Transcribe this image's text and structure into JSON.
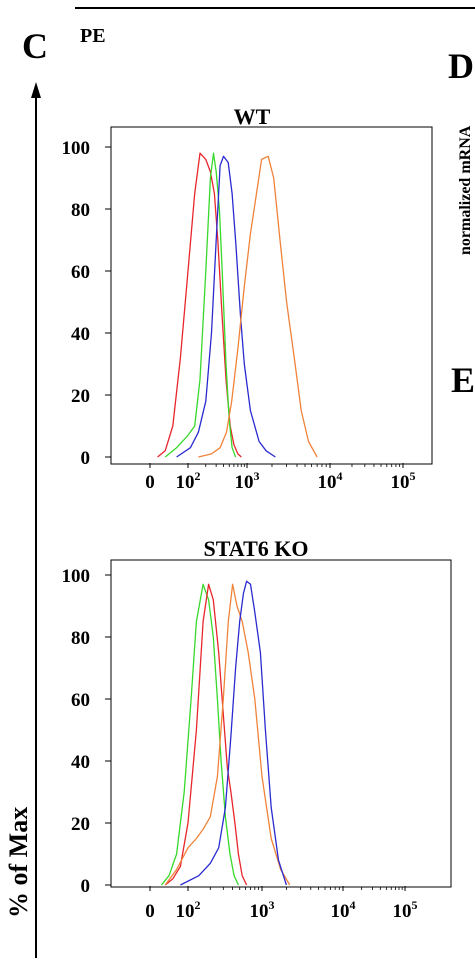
{
  "figure": {
    "panel_c_label": "C",
    "panel_d_label": "D",
    "panel_e_label": "E",
    "pe_label": "PE",
    "d_ylabel_fragment": "normalized mRNA",
    "y_axis_label": "% of Max"
  },
  "colors": {
    "red": "#e8262b",
    "green": "#37d92b",
    "blue": "#2a2ad0",
    "orange": "#f0833a"
  },
  "chart_data": [
    {
      "type": "line",
      "title": "WT",
      "ylabel": "% of Max",
      "xscale": "biexponential (log-like, flow cytometry)",
      "ylim": [
        0,
        100
      ],
      "y_ticks": [
        "0",
        "20",
        "40",
        "60",
        "80",
        "100"
      ],
      "x_ticks": [
        {
          "base": "0",
          "exp": ""
        },
        {
          "base": "10",
          "exp": "2"
        },
        {
          "base": "10",
          "exp": "3"
        },
        {
          "base": "10",
          "exp": "4"
        },
        {
          "base": "10",
          "exp": "5"
        }
      ],
      "series": [
        {
          "color": "red",
          "x": [
            20,
            40,
            60,
            80,
            100,
            130,
            160,
            200,
            240,
            280,
            320,
            380,
            440,
            520,
            600,
            700,
            800
          ],
          "y": [
            0,
            2,
            10,
            32,
            60,
            85,
            98,
            96,
            92,
            85,
            70,
            45,
            25,
            10,
            4,
            1,
            0
          ]
        },
        {
          "color": "green",
          "x": [
            40,
            70,
            100,
            130,
            160,
            200,
            240,
            270,
            300,
            340,
            380,
            440,
            500,
            560,
            640
          ],
          "y": [
            0,
            3,
            7,
            10,
            25,
            60,
            90,
            98,
            92,
            80,
            60,
            30,
            12,
            3,
            0
          ]
        },
        {
          "color": "blue",
          "x": [
            70,
            110,
            150,
            200,
            250,
            300,
            350,
            400,
            480,
            560,
            650,
            780,
            900,
            1100,
            1400,
            1700,
            2200
          ],
          "y": [
            0,
            3,
            8,
            18,
            40,
            70,
            94,
            97,
            95,
            85,
            68,
            45,
            30,
            15,
            5,
            2,
            0
          ]
        },
        {
          "color": "orange",
          "x": [
            150,
            250,
            350,
            450,
            550,
            700,
            900,
            1100,
            1300,
            1500,
            1800,
            2100,
            2500,
            3000,
            3800,
            4500,
            5500,
            7000
          ],
          "y": [
            0,
            1,
            3,
            8,
            18,
            35,
            55,
            72,
            85,
            96,
            97,
            90,
            70,
            50,
            30,
            15,
            5,
            0
          ]
        }
      ]
    },
    {
      "type": "line",
      "title": "STAT6 KO",
      "ylabel": "% of Max",
      "xscale": "biexponential (log-like, flow cytometry)",
      "ylim": [
        0,
        100
      ],
      "y_ticks": [
        "0",
        "20",
        "40",
        "60",
        "80",
        "100"
      ],
      "x_ticks": [
        {
          "base": "0",
          "exp": ""
        },
        {
          "base": "10",
          "exp": "2"
        },
        {
          "base": "10",
          "exp": "3"
        },
        {
          "base": "10",
          "exp": "4"
        },
        {
          "base": "10",
          "exp": "5"
        }
      ],
      "series": [
        {
          "color": "green",
          "x": [
            30,
            50,
            70,
            90,
            110,
            130,
            160,
            190,
            220,
            250,
            280,
            320,
            370,
            420,
            480
          ],
          "y": [
            0,
            3,
            10,
            30,
            60,
            85,
            97,
            92,
            80,
            60,
            40,
            22,
            10,
            3,
            0
          ]
        },
        {
          "color": "red",
          "x": [
            40,
            60,
            80,
            100,
            130,
            160,
            190,
            220,
            260,
            300,
            340,
            380,
            430,
            480,
            540,
            620
          ],
          "y": [
            0,
            2,
            6,
            20,
            50,
            85,
            97,
            92,
            75,
            55,
            38,
            30,
            20,
            10,
            3,
            0
          ]
        },
        {
          "color": "orange",
          "x": [
            40,
            70,
            100,
            130,
            160,
            200,
            250,
            300,
            350,
            400,
            460,
            540,
            650,
            800,
            1000,
            1300,
            1700,
            2200
          ],
          "y": [
            0,
            5,
            12,
            15,
            18,
            22,
            35,
            60,
            85,
            97,
            90,
            85,
            75,
            60,
            35,
            15,
            5,
            0
          ]
        },
        {
          "color": "blue",
          "x": [
            80,
            140,
            200,
            260,
            320,
            380,
            440,
            500,
            560,
            620,
            700,
            800,
            950,
            1100,
            1300,
            1600,
            2000
          ],
          "y": [
            0,
            3,
            7,
            12,
            25,
            48,
            70,
            85,
            94,
            98,
            97,
            88,
            75,
            50,
            25,
            8,
            0
          ]
        }
      ]
    }
  ]
}
